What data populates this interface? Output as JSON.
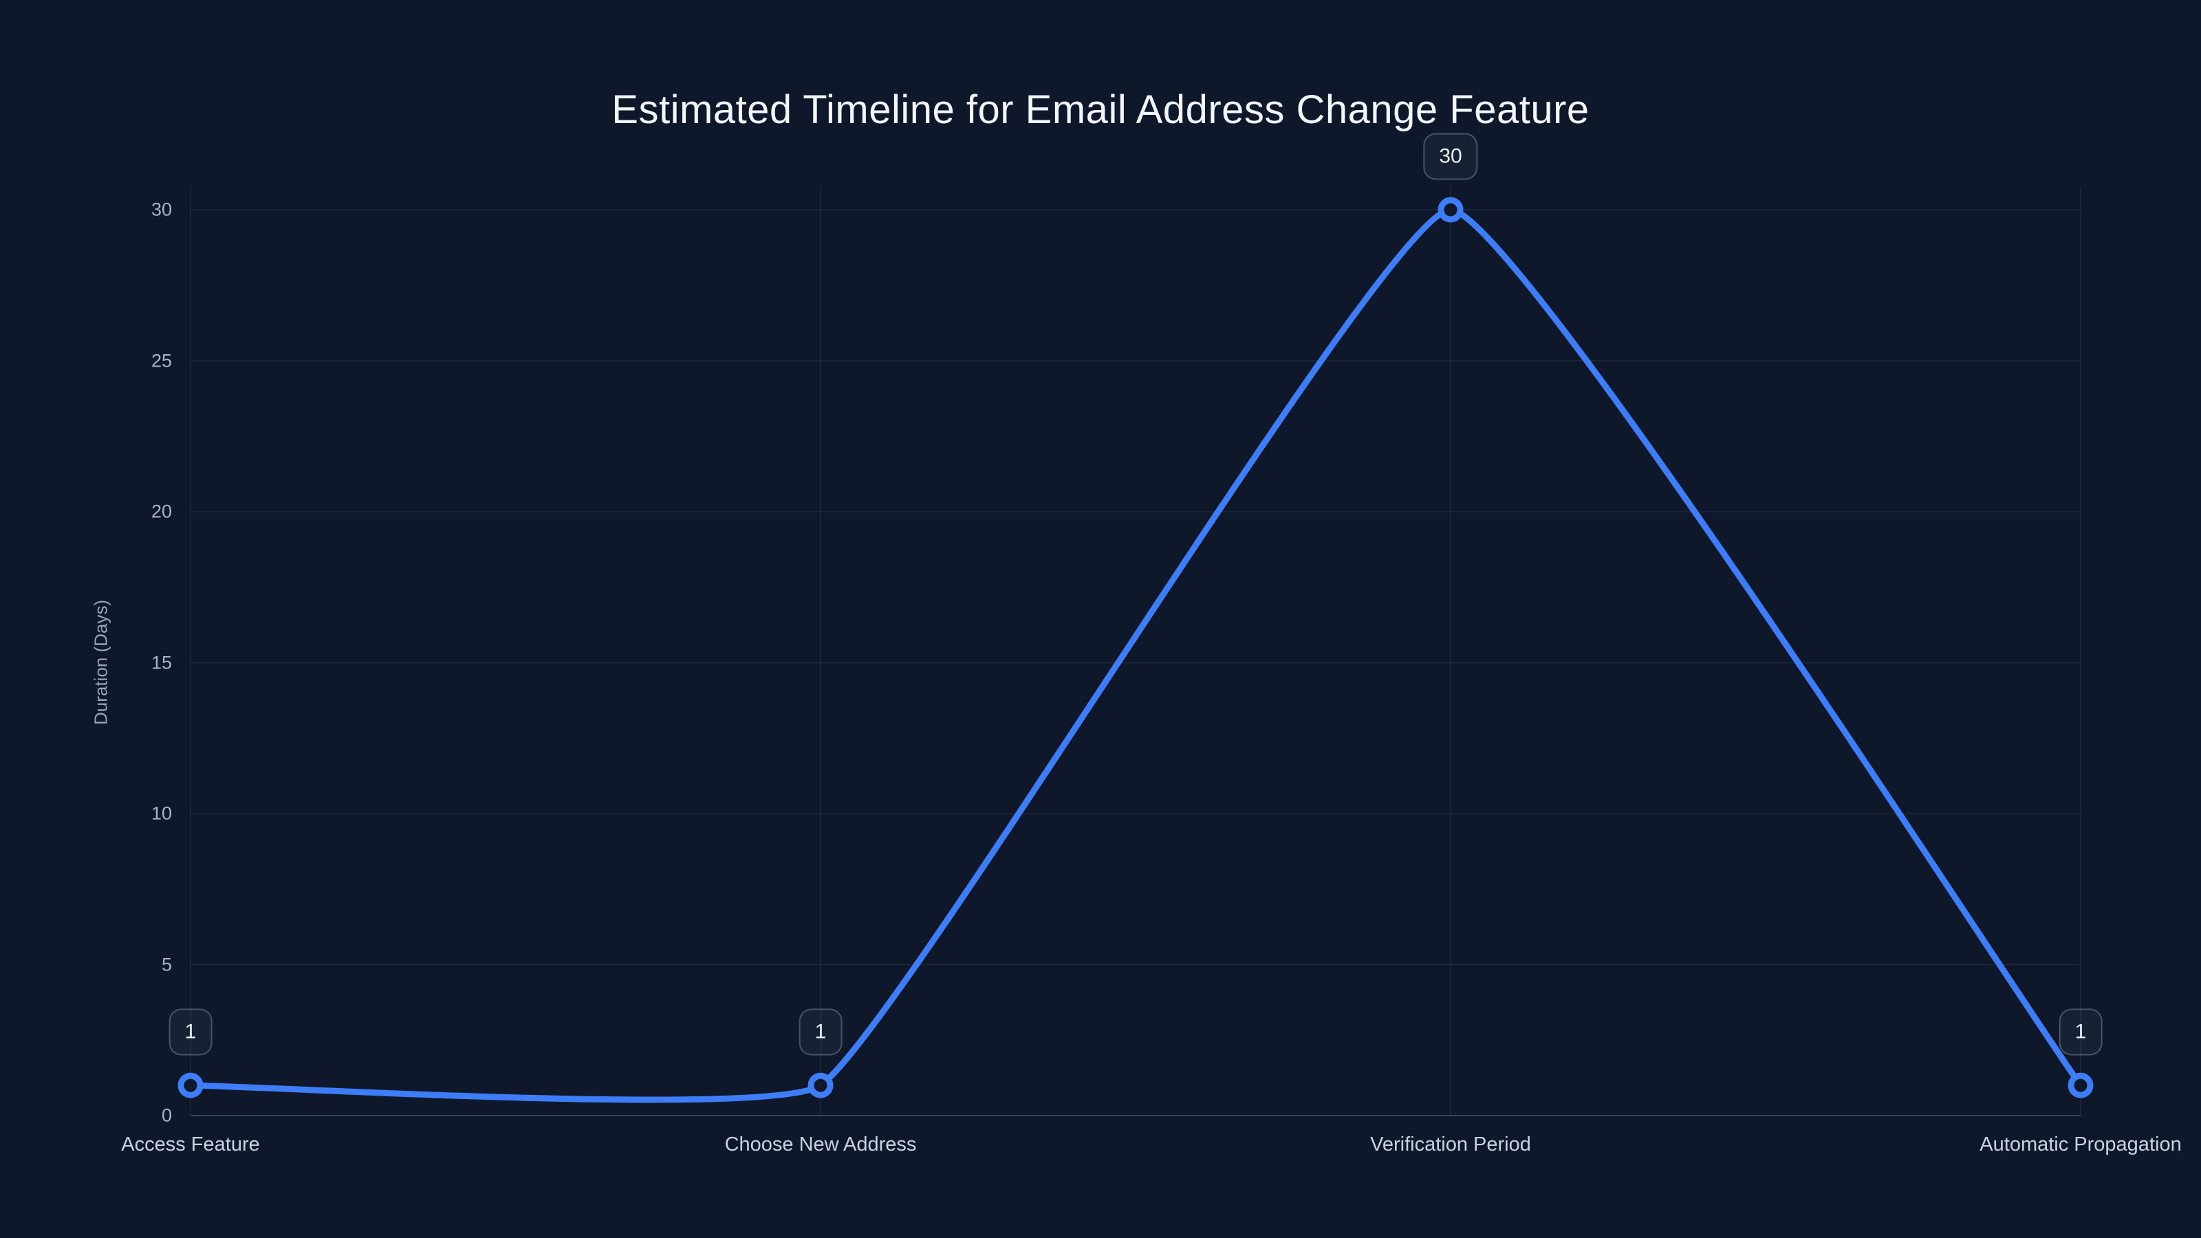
{
  "page": {
    "background_color": "#0f172a"
  },
  "chart_data": {
    "type": "line",
    "smooth": true,
    "title": "Estimated Timeline for Email Address Change Feature",
    "xlabel": "",
    "ylabel": "Duration (Days)",
    "categories": [
      "Access Feature",
      "Choose New Address",
      "Verification Period",
      "Automatic Propagation"
    ],
    "series": [
      {
        "name": "Duration (Days)",
        "values": [
          1,
          1,
          30,
          1
        ]
      }
    ],
    "point_labels": [
      "1",
      "1",
      "30",
      "1"
    ],
    "ylim": [
      0,
      30
    ],
    "yticks": [
      0,
      5,
      10,
      15,
      20,
      25,
      30
    ],
    "grid": true,
    "legend_position": "none",
    "marker_style": "open-circle",
    "colors": {
      "line": "#3d7df7",
      "marker_fill": "#0f172a",
      "grid_line": "rgba(148,163,184,0.12)",
      "axis_line": "rgba(148,163,184,0.32)",
      "title_text": "#f2f6fa",
      "y_tick_text": "#a9b4c6",
      "x_label_text": "#c9d3df",
      "axis_title_text": "#9aa7bb",
      "label_box_border": "rgba(148,163,184,0.40)",
      "label_box_text": "#edf1f7"
    }
  }
}
